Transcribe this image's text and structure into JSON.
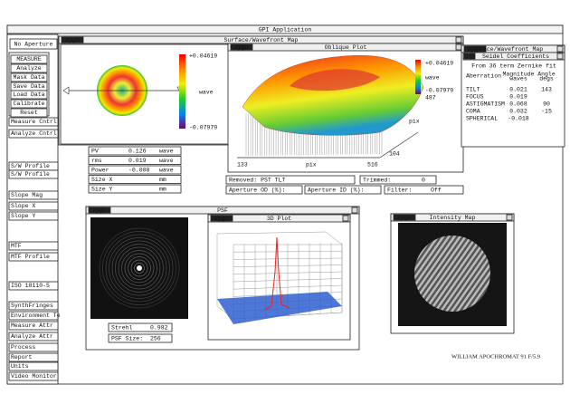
{
  "window_title": "GPI Application",
  "logo": "zygo",
  "left_panel": {
    "aperture": "No Aperture",
    "measure_group": [
      "MEASURE",
      "Analyze",
      "Mask Data",
      "Save Data",
      "Load Data",
      "Calibrate",
      "Reset"
    ],
    "buttons": [
      "Measure Cntrl",
      "Analyze Cntrl",
      "S/W Profile",
      "S/W Profile",
      "Slope Mag",
      "Slope X",
      "Slope Y",
      "MTF",
      "MTF Profile",
      "ISO 10110-5",
      "SynthFringes",
      "Environment Te",
      "Measure Attr",
      "Analyze Attr",
      "Process",
      "Report",
      "Units",
      "Video Monitor"
    ]
  },
  "surface_map": {
    "title": "Surface/Wavefront Map",
    "colorbar": {
      "max": "+0.04619",
      "unit": "wave",
      "min": "-0.07979"
    }
  },
  "oblique_plot": {
    "title": "Oblique Plot",
    "colorbar": {
      "max": "+0.04619",
      "unit": "wave",
      "min": "-0.07979"
    },
    "axis_labels": {
      "y_max": "487",
      "y_unit": "pix",
      "y_min": "104",
      "x_min": "133",
      "x_unit": "pix",
      "x_max": "516"
    }
  },
  "seidel": {
    "back_title": "ace/Wavefront Map",
    "title": "Seidel Coefficients",
    "note": "From 36 term Zernike fit",
    "headers": {
      "aberration": "Aberration",
      "magnitude": "Magnitude",
      "magnitude_unit": "waves",
      "angle": "Angle",
      "angle_unit": "degs"
    },
    "rows": [
      {
        "name": "TILT",
        "magnitude": "0.021",
        "angle": "143"
      },
      {
        "name": "FOCUS",
        "magnitude": "0.019"
      },
      {
        "name": "ASTIGMATISM",
        "magnitude": "0.068",
        "angle": "90"
      },
      {
        "name": "COMA",
        "magnitude": "0.032",
        "angle": "-15"
      },
      {
        "name": "SPHERICAL",
        "magnitude": "-0.018"
      }
    ]
  },
  "stats": [
    {
      "label": "PV",
      "value": "0.126",
      "unit": "wave"
    },
    {
      "label": "rms",
      "value": "0.019",
      "unit": "wave"
    },
    {
      "label": "Power",
      "value": "-0.000",
      "unit": "wave"
    },
    {
      "label": "Size X",
      "unit": "mm"
    },
    {
      "label": "Size Y",
      "unit": "mm"
    }
  ],
  "info": {
    "removed": "Removed: PST TLT",
    "trimmed_label": "Trimmed:",
    "trimmed": "0",
    "aperture_od": "Aperture OD (%):",
    "aperture_id": "Aperture ID (%):",
    "filter_label": "Filter:",
    "filter": "Off"
  },
  "psf": {
    "title": "PSF",
    "plot_title": "3D Plot",
    "strehl_label": "Strehl",
    "strehl": "0.982",
    "size_label": "PSF Size:",
    "size": "256"
  },
  "intensity_map": {
    "title": "Intensity Map"
  },
  "caption": "WILLIAM APOCHROMAT 91 F/5.9"
}
